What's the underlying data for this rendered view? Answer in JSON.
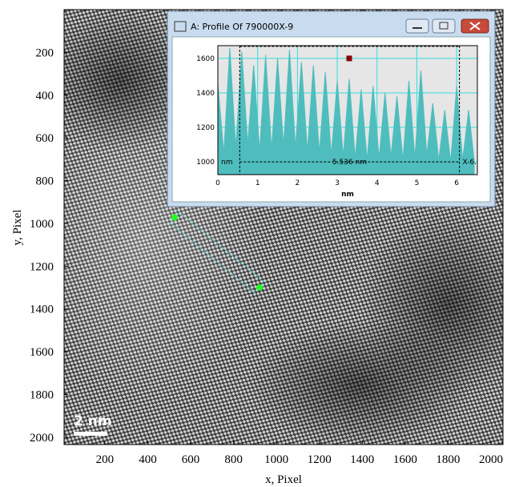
{
  "chart_data": [
    {
      "type": "image",
      "xlabel": "x, Pixel",
      "ylabel": "y, Pixel",
      "xlim": [
        10,
        2056
      ],
      "ylim": [
        0,
        2034
      ],
      "xticks": [
        200,
        400,
        600,
        800,
        1000,
        1200,
        1400,
        1600,
        1800,
        2000
      ],
      "yticks": [
        200,
        400,
        600,
        800,
        1000,
        1200,
        1400,
        1600,
        1800,
        2000
      ],
      "scale_bar": "2 nm",
      "roi": {
        "start": [
          525,
          972
        ],
        "end": [
          921,
          1299
        ]
      }
    },
    {
      "type": "area",
      "title": "A: Profile Of 790000X-9",
      "xlabel": "nm",
      "x": [
        0,
        0.15,
        0.3,
        0.45,
        0.6,
        0.75,
        0.9,
        1.05,
        1.2,
        1.35,
        1.5,
        1.65,
        1.8,
        1.95,
        2.1,
        2.25,
        2.4,
        2.55,
        2.7,
        2.85,
        3,
        3.15,
        3.3,
        3.45,
        3.6,
        3.75,
        3.9,
        4.05,
        4.2,
        4.35,
        4.5,
        4.65,
        4.8,
        4.95,
        5.1,
        5.25,
        5.4,
        5.55,
        5.7,
        5.85,
        6,
        6.15,
        6.3,
        6.45
      ],
      "values": [
        1450,
        1050,
        1660,
        1080,
        1640,
        1100,
        1560,
        1060,
        1620,
        1070,
        1600,
        1090,
        1650,
        1080,
        1580,
        1060,
        1560,
        1050,
        1520,
        1040,
        1470,
        1030,
        1480,
        1020,
        1420,
        1010,
        1440,
        1020,
        1400,
        1030,
        1380,
        1010,
        1470,
        1020,
        1530,
        1040,
        1340,
        1010,
        1300,
        1000,
        1440,
        1010,
        1300,
        990
      ],
      "color": "#4fbdbd",
      "xlim": [
        0,
        6.52
      ],
      "ylim": [
        926,
        1674
      ],
      "xticks": [
        0,
        1,
        2,
        3,
        4,
        5,
        6
      ],
      "yticks": [
        1000,
        1200,
        1400,
        1600
      ],
      "grid": true,
      "cursor_x": [
        0.55,
        6.07
      ],
      "cursor_y": 1000,
      "marker": {
        "x": 3.3,
        "y": 1600
      },
      "annotations": [
        "nm",
        "5.536 nm",
        "X-6."
      ]
    }
  ]
}
